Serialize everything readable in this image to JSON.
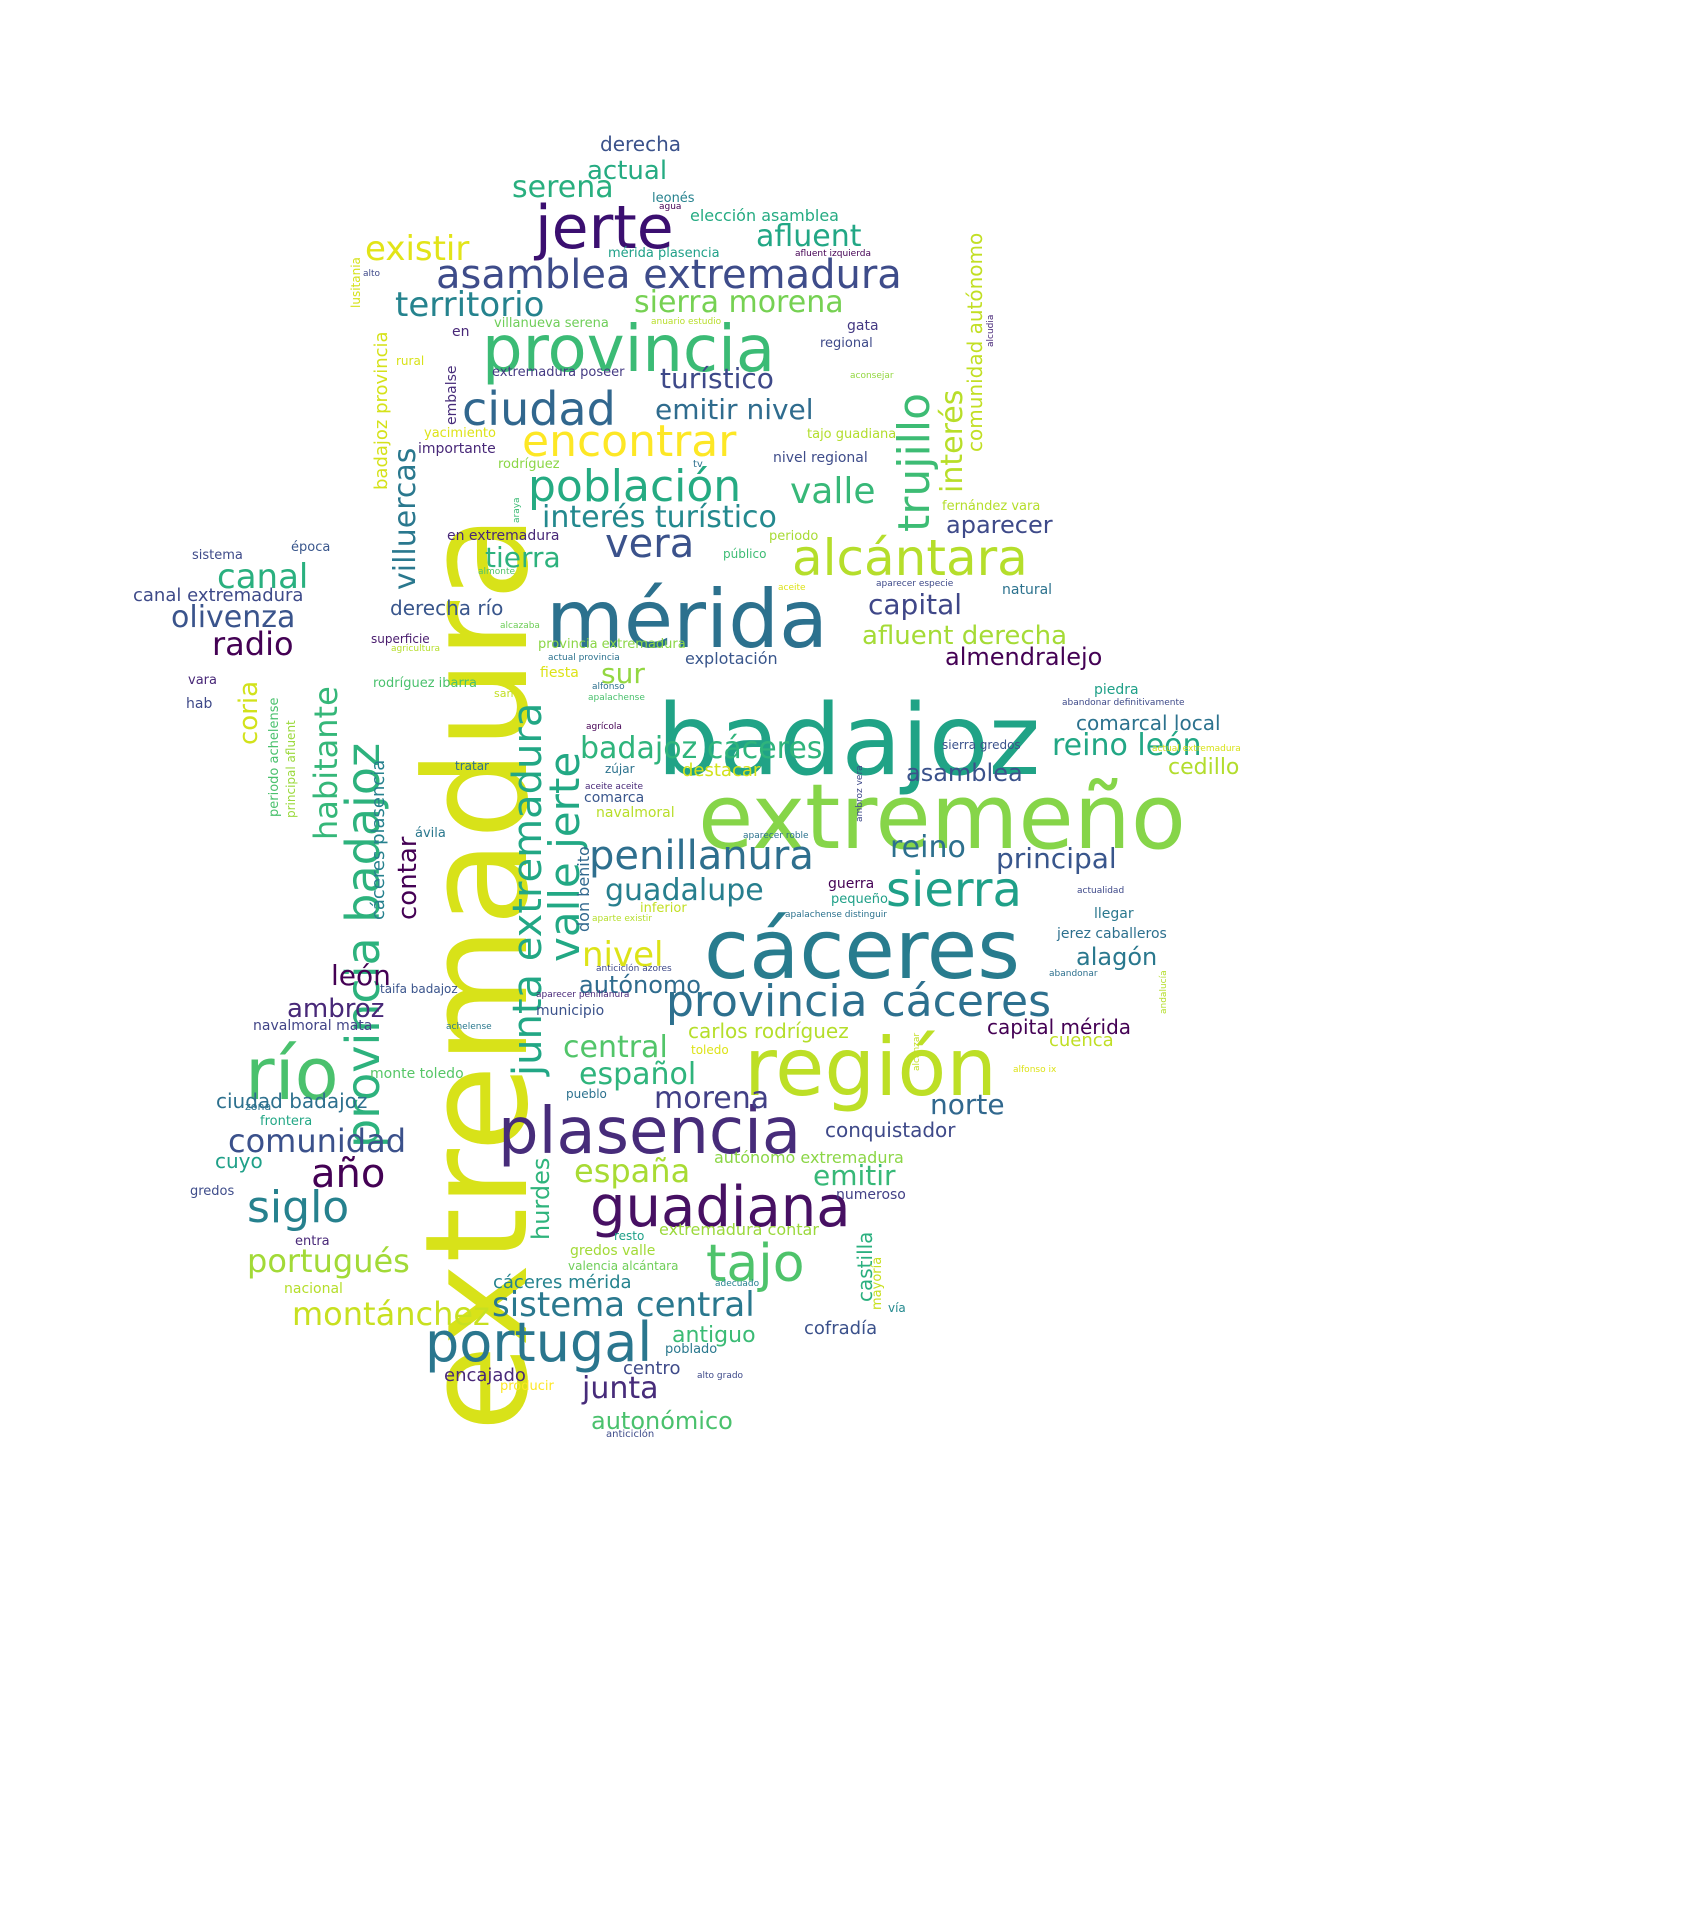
{
  "palette": [
    "#440154",
    "#482878",
    "#3e4a89",
    "#31688e",
    "#26828e",
    "#1f9e89",
    "#35b779",
    "#6ece58",
    "#b5de2b",
    "#fde725"
  ],
  "words": [
    {
      "text": "extremadura",
      "color": "#d8e219"
    },
    {
      "text": "badajoz",
      "color": "#20a386"
    },
    {
      "text": "extremeño",
      "color": "#86d549"
    },
    {
      "text": "cáceres",
      "color": "#287c8e"
    },
    {
      "text": "mérida",
      "color": "#2c718e"
    },
    {
      "text": "región",
      "color": "#bddf26"
    },
    {
      "text": "plasencia",
      "color": "#472c7a"
    },
    {
      "text": "provincia",
      "color": "#3bbb75"
    },
    {
      "text": "jerte",
      "color": "#3b0f70"
    },
    {
      "text": "río",
      "color": "#4ac16d"
    },
    {
      "text": "guadiana",
      "color": "#471063"
    },
    {
      "text": "portugal",
      "color": "#2a768e"
    },
    {
      "text": "provincia badajoz",
      "color": "#2db27d"
    },
    {
      "text": "provincia cáceres",
      "color": "#2d708e"
    },
    {
      "text": "asamblea extremadura",
      "color": "#3e4c8a"
    },
    {
      "text": "encontrar",
      "color": "#fde725"
    },
    {
      "text": "población",
      "color": "#25ab82"
    },
    {
      "text": "alcántara",
      "color": "#b5de2b"
    },
    {
      "text": "ciudad",
      "color": "#31678e"
    },
    {
      "text": "penillanura",
      "color": "#2e6f8e"
    },
    {
      "text": "sierra",
      "color": "#1fa088"
    },
    {
      "text": "tajo",
      "color": "#4ec36b"
    },
    {
      "text": "siglo",
      "color": "#26818e"
    },
    {
      "text": "vera",
      "color": "#3b528b"
    },
    {
      "text": "junta extremadura",
      "color": "#22a785"
    },
    {
      "text": "valle jerte",
      "color": "#22a884"
    },
    {
      "text": "trujillo",
      "color": "#3dbc74"
    },
    {
      "text": "año",
      "color": "#440154"
    },
    {
      "text": "comunidad",
      "color": "#3b518b"
    },
    {
      "text": "sistema central",
      "color": "#2a788e"
    },
    {
      "text": "territorio",
      "color": "#25838e"
    },
    {
      "text": "interés turístico",
      "color": "#23898e"
    },
    {
      "text": "sierra morena",
      "color": "#76d153"
    },
    {
      "text": "existir",
      "color": "#e2e418"
    },
    {
      "text": "serena",
      "color": "#29af7f"
    },
    {
      "text": "afluent",
      "color": "#22a785"
    },
    {
      "text": "badajoz cáceres",
      "color": "#2fb47c"
    },
    {
      "text": "españa",
      "color": "#a8db34"
    },
    {
      "text": "montánchez",
      "color": "#c8e020"
    },
    {
      "text": "portugués",
      "color": "#a2da37"
    },
    {
      "text": "guadalupe",
      "color": "#277f8e"
    },
    {
      "text": "habitante",
      "color": "#35b779"
    },
    {
      "text": "villuercas",
      "color": "#2a788e"
    },
    {
      "text": "canal",
      "color": "#2ab07f"
    },
    {
      "text": "radio",
      "color": "#440154"
    },
    {
      "text": "olivenza",
      "color": "#3a548c"
    },
    {
      "text": "central",
      "color": "#52c569"
    },
    {
      "text": "español",
      "color": "#2fb47c"
    },
    {
      "text": "morena",
      "color": "#424086"
    },
    {
      "text": "emitir",
      "color": "#37b878"
    },
    {
      "text": "emitir nivel",
      "color": "#2f6c8e"
    },
    {
      "text": "turístico",
      "color": "#3e4989"
    },
    {
      "text": "valle",
      "color": "#37b878"
    },
    {
      "text": "tierra",
      "color": "#2db27d"
    },
    {
      "text": "capital",
      "color": "#3f4788"
    },
    {
      "text": "afluent derecha",
      "color": "#a5db36"
    },
    {
      "text": "almendralejo",
      "color": "#440154"
    },
    {
      "text": "reino león",
      "color": "#22a785"
    },
    {
      "text": "reino",
      "color": "#2d708e"
    },
    {
      "text": "principal",
      "color": "#39568c"
    },
    {
      "text": "asamblea",
      "color": "#3b528b"
    },
    {
      "text": "nivel",
      "color": "#dde318"
    },
    {
      "text": "autónomo",
      "color": "#2f6c8e"
    },
    {
      "text": "alagón",
      "color": "#2a788e"
    },
    {
      "text": "norte",
      "color": "#31688e"
    },
    {
      "text": "antiguo",
      "color": "#3bbb75"
    },
    {
      "text": "junta",
      "color": "#472c7a"
    },
    {
      "text": "autonómico",
      "color": "#4ac16d"
    },
    {
      "text": "sur",
      "color": "#93d741"
    },
    {
      "text": "hurdes",
      "color": "#2fb47c"
    },
    {
      "text": "coria",
      "color": "#d2e21b"
    },
    {
      "text": "interés",
      "color": "#b8de29"
    },
    {
      "text": "aparecer",
      "color": "#3e4a89"
    },
    {
      "text": "contar",
      "color": "#440154"
    },
    {
      "text": "león",
      "color": "#440154"
    },
    {
      "text": "ambroz",
      "color": "#482878"
    },
    {
      "text": "comunidad autónomo",
      "color": "#c2df23"
    },
    {
      "text": "actual",
      "color": "#25ab82"
    },
    {
      "text": "derecha",
      "color": "#3b528b"
    },
    {
      "text": "cuyo",
      "color": "#1fa088"
    },
    {
      "text": "castilla",
      "color": "#2ab07f"
    },
    {
      "text": "cedillo",
      "color": "#b2dd2d"
    },
    {
      "text": "capital mérida",
      "color": "#440154"
    },
    {
      "text": "ciudad badajoz",
      "color": "#2d708e"
    },
    {
      "text": "comarcal local",
      "color": "#2c728e"
    },
    {
      "text": "carlos rodríguez",
      "color": "#b5de2b"
    },
    {
      "text": "destacar",
      "color": "#d2e21b"
    },
    {
      "text": "conquistador",
      "color": "#3e4989"
    },
    {
      "text": "cofradía",
      "color": "#3b518b"
    },
    {
      "text": "derecha río",
      "color": "#39568c"
    },
    {
      "text": "badajoz provincia",
      "color": "#d5e21a"
    },
    {
      "text": "cáceres plasencia",
      "color": "#26818e"
    },
    {
      "text": "encajado",
      "color": "#482878"
    },
    {
      "text": "centro",
      "color": "#3e4a89"
    },
    {
      "text": "canal extremadura",
      "color": "#3e4a89"
    },
    {
      "text": "elección asamblea",
      "color": "#25ab82"
    },
    {
      "text": "cáceres mérida",
      "color": "#25838e"
    },
    {
      "text": "autónomo extremadura",
      "color": "#8bd646"
    },
    {
      "text": "explotación",
      "color": "#39568c"
    },
    {
      "text": "extremadura contar",
      "color": "#9bd93c"
    },
    {
      "text": "cuenca",
      "color": "#c0df25"
    },
    {
      "text": "monte toledo",
      "color": "#56c667"
    },
    {
      "text": "llegar",
      "color": "#2a788e"
    },
    {
      "text": "navalmoral mata",
      "color": "#414487"
    },
    {
      "text": "jerez caballeros",
      "color": "#2d708e"
    },
    {
      "text": "numeroso",
      "color": "#424086"
    },
    {
      "text": "gredos valle",
      "color": "#a2da37"
    },
    {
      "text": "en",
      "color": "#482878"
    },
    {
      "text": "guerra",
      "color": "#440154"
    },
    {
      "text": "piedra",
      "color": "#1fa088"
    },
    {
      "text": "natural",
      "color": "#2c728e"
    },
    {
      "text": "sierra gredos",
      "color": "#3b528b"
    },
    {
      "text": "embalse",
      "color": "#472c7a"
    },
    {
      "text": "regional",
      "color": "#3e4a89"
    },
    {
      "text": "gata",
      "color": "#443983"
    },
    {
      "text": "nivel regional",
      "color": "#3e4c8a"
    },
    {
      "text": "fernández vara",
      "color": "#b5de2b"
    },
    {
      "text": "mérida plasencia",
      "color": "#1fa088"
    },
    {
      "text": "leonés",
      "color": "#26828e"
    },
    {
      "text": "importante",
      "color": "#482878"
    },
    {
      "text": "yacimiento",
      "color": "#dde318"
    },
    {
      "text": "tajo guadiana",
      "color": "#b2dd2d"
    },
    {
      "text": "rodríguez",
      "color": "#8bd646"
    },
    {
      "text": "extremadura poseer",
      "color": "#443a83"
    },
    {
      "text": "villanueva serena",
      "color": "#6ece58"
    },
    {
      "text": "lusitania",
      "color": "#d5e21a"
    },
    {
      "text": "rural",
      "color": "#d8e219"
    },
    {
      "text": "en extremadura",
      "color": "#482878"
    },
    {
      "text": "periodo",
      "color": "#a8db34"
    },
    {
      "text": "público",
      "color": "#3dbc74"
    },
    {
      "text": "superficie",
      "color": "#481b6d"
    },
    {
      "text": "rodríguez ibarra",
      "color": "#4ac16d"
    },
    {
      "text": "provincia extremadura",
      "color": "#8bd646"
    },
    {
      "text": "fiesta",
      "color": "#dde318"
    },
    {
      "text": "sistema",
      "color": "#3e4a89"
    },
    {
      "text": "época",
      "color": "#39568c"
    },
    {
      "text": "vara",
      "color": "#482878"
    },
    {
      "text": "hab",
      "color": "#3e4989"
    },
    {
      "text": "periodo achelense",
      "color": "#4ac16d"
    },
    {
      "text": "principal afluent",
      "color": "#9bd93c"
    },
    {
      "text": "tratar",
      "color": "#2d708e"
    },
    {
      "text": "zújar",
      "color": "#2c728e"
    },
    {
      "text": "comarca",
      "color": "#39568c"
    },
    {
      "text": "navalmoral",
      "color": "#b8de29"
    },
    {
      "text": "ávila",
      "color": "#2a788e"
    },
    {
      "text": "don benito",
      "color": "#31688e"
    },
    {
      "text": "pequeño",
      "color": "#1fa088"
    },
    {
      "text": "inferior",
      "color": "#c2df23"
    },
    {
      "text": "taifa badajoz",
      "color": "#3a548c"
    },
    {
      "text": "municipio",
      "color": "#3b528b"
    },
    {
      "text": "toledo",
      "color": "#dde318"
    },
    {
      "text": "pueblo",
      "color": "#2c718e"
    },
    {
      "text": "zona",
      "color": "#2c728e"
    },
    {
      "text": "frontera",
      "color": "#22a785"
    },
    {
      "text": "gredos",
      "color": "#3e4c8a"
    },
    {
      "text": "entra",
      "color": "#482878"
    },
    {
      "text": "resto",
      "color": "#1fa088"
    },
    {
      "text": "valencia alcántara",
      "color": "#6ece58"
    },
    {
      "text": "nacional",
      "color": "#b5de2b"
    },
    {
      "text": "mayoría",
      "color": "#c8e020"
    },
    {
      "text": "vía",
      "color": "#23898e"
    },
    {
      "text": "poblado",
      "color": "#2a788e"
    },
    {
      "text": "producir",
      "color": "#fde725"
    },
    {
      "text": "anticiclón",
      "color": "#3e4c8a"
    },
    {
      "text": "agua",
      "color": "#440154"
    },
    {
      "text": "afluent izquierda",
      "color": "#440154"
    },
    {
      "text": "alto",
      "color": "#3e4989"
    },
    {
      "text": "anuario estudio",
      "color": "#b8de29"
    },
    {
      "text": "alcudia",
      "color": "#482878"
    },
    {
      "text": "aconsejar",
      "color": "#93d741"
    },
    {
      "text": "tv",
      "color": "#2d708e"
    },
    {
      "text": "araya",
      "color": "#3bbb75"
    },
    {
      "text": "almonte",
      "color": "#52c569"
    },
    {
      "text": "alcazaba",
      "color": "#6ece58"
    },
    {
      "text": "agricultura",
      "color": "#b5de2b"
    },
    {
      "text": "actual provincia",
      "color": "#2c728e"
    },
    {
      "text": "san",
      "color": "#c2df23"
    },
    {
      "text": "alfonso",
      "color": "#2d708e"
    },
    {
      "text": "apalachense",
      "color": "#4ac16d"
    },
    {
      "text": "agrícola",
      "color": "#440154"
    },
    {
      "text": "aceite",
      "color": "#dde318"
    },
    {
      "text": "aparecer especie",
      "color": "#3e4a89"
    },
    {
      "text": "abandonar definitivamente",
      "color": "#3e4a89"
    },
    {
      "text": "actual extremadura",
      "color": "#d8e219"
    },
    {
      "text": "ambroz vera",
      "color": "#3e4989"
    },
    {
      "text": "aceite aceite",
      "color": "#482878"
    },
    {
      "text": "aparecer roble",
      "color": "#2c728e"
    },
    {
      "text": "actualidad",
      "color": "#3e4989"
    },
    {
      "text": "aparte existir",
      "color": "#b5de2b"
    },
    {
      "text": "apalachense distinguir",
      "color": "#2c728e"
    },
    {
      "text": "anticiclón azores",
      "color": "#3e4989"
    },
    {
      "text": "abandonar",
      "color": "#2d708e"
    },
    {
      "text": "andalucía",
      "color": "#b5de2b"
    },
    {
      "text": "aparecer penillanura",
      "color": "#482878"
    },
    {
      "text": "achelense",
      "color": "#2a788e"
    },
    {
      "text": "alcanzar",
      "color": "#c2df23"
    },
    {
      "text": "alfonso ix",
      "color": "#dde318"
    },
    {
      "text": "adecuado",
      "color": "#26828e"
    },
    {
      "text": "alto grado",
      "color": "#3e4a89"
    }
  ]
}
